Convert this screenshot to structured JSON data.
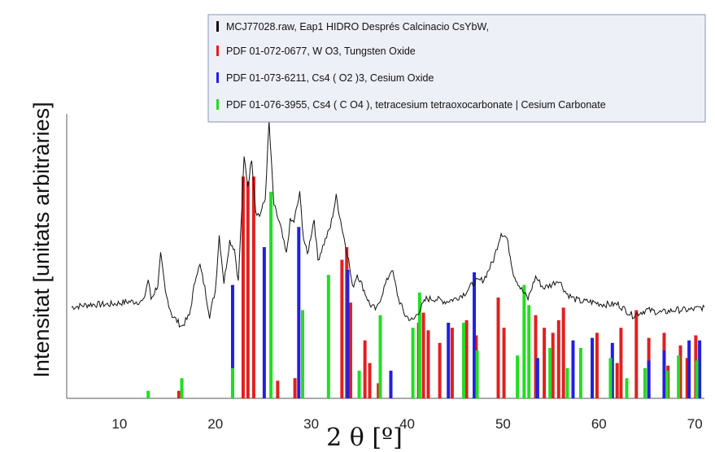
{
  "chart_data": {
    "type": "line",
    "xlabel": "2 θ [º]",
    "ylabel": "Intensitat [unitats arbitràries]",
    "xlim": [
      4.5,
      71
    ],
    "xticks": [
      10,
      20,
      30,
      40,
      50,
      60,
      70
    ],
    "grid": false,
    "legend_position": "top-right",
    "legend": [
      {
        "label": "MCJ77028.raw, Eap1 HIDRO Després Calcinacio CsYbW,",
        "color": "#111111"
      },
      {
        "label": "PDF 01-072-0677, W O3, Tungsten Oxide",
        "color": "#e02020"
      },
      {
        "label": "PDF 01-073-6211, Cs4 ( O2 )3, Cesium Oxide",
        "color": "#2020e0"
      },
      {
        "label": "PDF 01-076-3955, Cs4 ( C O4 ), tetracesium tetraoxocarbonate | Cesium Carbonate",
        "color": "#22dd22"
      }
    ],
    "pattern": {
      "name": "MCJ77028.raw",
      "color": "#111111",
      "ylim": [
        0,
        100
      ],
      "points": [
        [
          5,
          33
        ],
        [
          7,
          34
        ],
        [
          9,
          34
        ],
        [
          11,
          35
        ],
        [
          12.5,
          35
        ],
        [
          13,
          43
        ],
        [
          13.3,
          36
        ],
        [
          14,
          41
        ],
        [
          14.3,
          52
        ],
        [
          14.8,
          38
        ],
        [
          15.5,
          30
        ],
        [
          16.5,
          26
        ],
        [
          17.3,
          30
        ],
        [
          18,
          45
        ],
        [
          18.4,
          48
        ],
        [
          18.9,
          40
        ],
        [
          19.4,
          30
        ],
        [
          20,
          39
        ],
        [
          20.4,
          59
        ],
        [
          20.9,
          42
        ],
        [
          21.5,
          57
        ],
        [
          22,
          54
        ],
        [
          22.4,
          42
        ],
        [
          23,
          87
        ],
        [
          23.4,
          77
        ],
        [
          23.8,
          87
        ],
        [
          24.2,
          68
        ],
        [
          24.6,
          66
        ],
        [
          25.2,
          72
        ],
        [
          25.6,
          100
        ],
        [
          26.1,
          70
        ],
        [
          26.8,
          62
        ],
        [
          27.4,
          52
        ],
        [
          27.8,
          64
        ],
        [
          28.2,
          64
        ],
        [
          28.8,
          74
        ],
        [
          29.2,
          58
        ],
        [
          29.6,
          52
        ],
        [
          30.3,
          65
        ],
        [
          30.7,
          50
        ],
        [
          31.2,
          55
        ],
        [
          32,
          62
        ],
        [
          32.6,
          73
        ],
        [
          33.3,
          60
        ],
        [
          33.9,
          50
        ],
        [
          34.3,
          40
        ],
        [
          34.8,
          45
        ],
        [
          35.4,
          40
        ],
        [
          36.1,
          34
        ],
        [
          36.8,
          32
        ],
        [
          37.6,
          40
        ],
        [
          38.4,
          47
        ],
        [
          39.1,
          36
        ],
        [
          39.8,
          30
        ],
        [
          40.6,
          28
        ],
        [
          41.3,
          32
        ],
        [
          42,
          36
        ],
        [
          43,
          36
        ],
        [
          44,
          35
        ],
        [
          45,
          36
        ],
        [
          46,
          38
        ],
        [
          47,
          42
        ],
        [
          48,
          43
        ],
        [
          49,
          50
        ],
        [
          49.8,
          60
        ],
        [
          50.4,
          58
        ],
        [
          51.1,
          45
        ],
        [
          51.8,
          40
        ],
        [
          52.6,
          36
        ],
        [
          53.4,
          44
        ],
        [
          54.2,
          40
        ],
        [
          55,
          41
        ],
        [
          55.8,
          43
        ],
        [
          56.6,
          38
        ],
        [
          57.4,
          36
        ],
        [
          58.2,
          35
        ],
        [
          59,
          35
        ],
        [
          60.5,
          34
        ],
        [
          62,
          34
        ],
        [
          63.5,
          30
        ],
        [
          65,
          32
        ],
        [
          66.5,
          31
        ],
        [
          68,
          32
        ],
        [
          69.5,
          32
        ],
        [
          71,
          33
        ]
      ]
    },
    "reference_lines": {
      "ylim": [
        0,
        100
      ],
      "WO3": {
        "color": "#e02020",
        "x": [
          16.2,
          22.9,
          23.4,
          24.0,
          26.5,
          28.3,
          33.2,
          33.7,
          34.1,
          35.6,
          36.1,
          37.0,
          38.3,
          41.2,
          41.7,
          42.2,
          43.4,
          44.7,
          46.2,
          47.2,
          49.5,
          50.1,
          53.4,
          54.3,
          55.2,
          55.8,
          56.3,
          59.8,
          61.9,
          62.3,
          63.9,
          65.2,
          66.8,
          67.2,
          68.5,
          69.2,
          70.1
        ],
        "values": [
          3,
          88,
          86,
          88,
          7,
          8,
          55,
          60,
          38,
          23,
          14,
          6,
          7,
          30,
          34,
          27,
          22,
          28,
          31,
          25,
          40,
          28,
          33,
          28,
          26,
          31,
          36,
          26,
          14,
          28,
          35,
          24,
          26,
          13,
          21,
          16,
          25
        ]
      },
      "Cs4O6": {
        "color": "#2020e0",
        "x": [
          21.8,
          25.1,
          28.7,
          33.8,
          38.3,
          44.3,
          47.0,
          53.6,
          57.3,
          59.3,
          61.4,
          65.2,
          66.8,
          69.4,
          70.5
        ],
        "values": [
          45,
          60,
          68,
          51,
          11,
          30,
          50,
          16,
          23,
          24,
          22,
          15,
          19,
          23,
          23
        ]
      },
      "Cs4CO4": {
        "color": "#22dd22",
        "x": [
          13.0,
          16.5,
          21.8,
          25.8,
          29.1,
          31.8,
          35.0,
          37.2,
          40.6,
          41.3,
          45.9,
          47.3,
          51.5,
          52.2,
          52.7,
          54.9,
          56.7,
          58.1,
          61.2,
          62.9,
          64.8,
          67.1,
          68.3,
          70.2
        ],
        "values": [
          3,
          8,
          12,
          82,
          35,
          49,
          11,
          33,
          28,
          42,
          30,
          19,
          17,
          45,
          37,
          20,
          12,
          20,
          16,
          8,
          12,
          11,
          17,
          15
        ]
      }
    }
  }
}
